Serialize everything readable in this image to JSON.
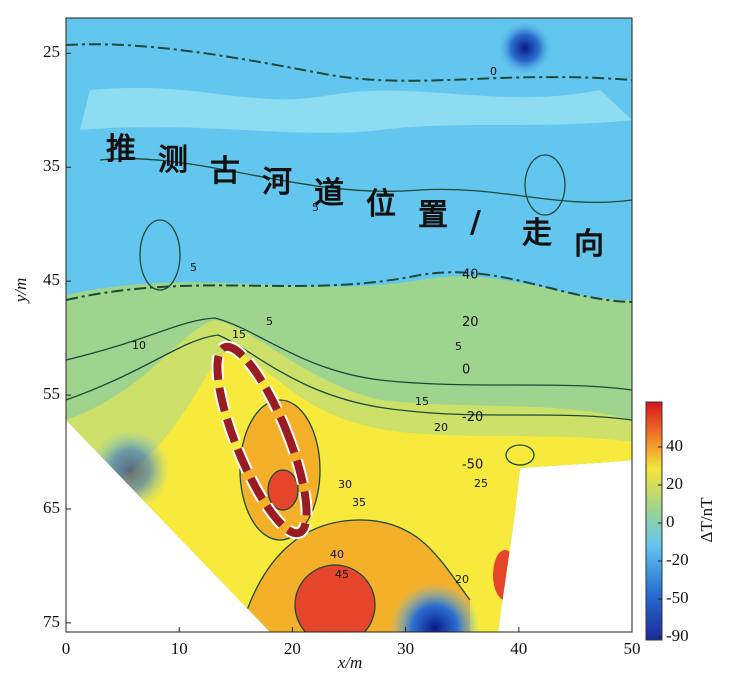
{
  "chart_data": {
    "type": "contour",
    "xlabel": "x/m",
    "ylabel": "y/m",
    "xlim": [
      0,
      50
    ],
    "xticks": [
      0,
      10,
      20,
      30,
      40,
      50
    ],
    "ylim": [
      21.9,
      75.8
    ],
    "yticks": [
      25,
      35,
      45,
      55,
      65,
      75
    ],
    "y_inverted": true,
    "annotation": "推测古河道位置/走向",
    "side_labels": [
      40,
      20,
      0,
      -20,
      -50
    ],
    "contour_labels": [
      "0",
      "5",
      "5",
      "5",
      "5",
      "10",
      "15",
      "15",
      "20",
      "25",
      "30",
      "35",
      "40",
      "45",
      "20"
    ],
    "colorbar": {
      "label": "ΔT/nT",
      "ticks": [
        40,
        20,
        0,
        -20,
        -50,
        -90
      ]
    }
  }
}
